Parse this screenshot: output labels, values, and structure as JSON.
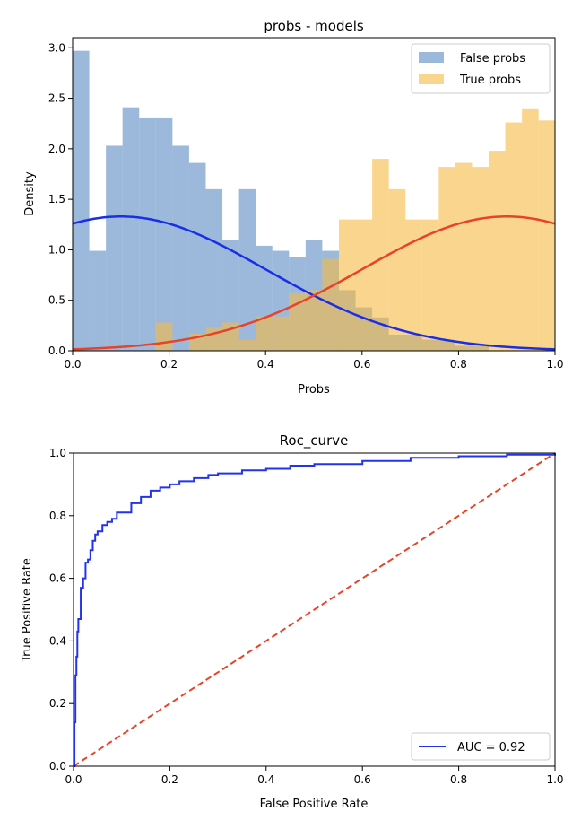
{
  "chart_data": [
    {
      "type": "histogram",
      "title": "probs - models",
      "xlabel": "Probs",
      "ylabel": "Density",
      "xlim": [
        0,
        1
      ],
      "ylim": [
        0,
        3.1
      ],
      "xticks": [
        "0.0",
        "0.2",
        "0.4",
        "0.6",
        "0.8",
        "1.0"
      ],
      "yticks": [
        "0.0",
        "0.5",
        "1.0",
        "1.5",
        "2.0",
        "2.5",
        "3.0"
      ],
      "grid": false,
      "legend_position": "top-right",
      "bin_width": 0.0345,
      "series": [
        {
          "name": "False probs",
          "kind": "histogram",
          "color": "#4a7fbf",
          "opacity": 0.55,
          "values": [
            2.97,
            0.99,
            2.03,
            2.41,
            2.31,
            2.31,
            2.03,
            1.86,
            1.6,
            1.1,
            1.6,
            1.04,
            0.99,
            0.93,
            1.1,
            0.99,
            0.6,
            0.43,
            0.33,
            0.16,
            0.16,
            0.11,
            0.11,
            0.05,
            0.05,
            0.0,
            0.0,
            0.0,
            0.0
          ]
        },
        {
          "name": "True probs",
          "kind": "histogram",
          "color": "#f5b942",
          "opacity": 0.6,
          "values": [
            0.0,
            0.0,
            0.0,
            0.0,
            0.0,
            0.28,
            0.0,
            0.17,
            0.23,
            0.28,
            0.11,
            0.34,
            0.34,
            0.57,
            0.6,
            0.91,
            1.3,
            1.3,
            1.9,
            1.6,
            1.3,
            1.3,
            1.82,
            1.86,
            1.82,
            1.98,
            2.26,
            2.4,
            2.28
          ]
        },
        {
          "name": "False fit",
          "kind": "curve",
          "color": "#1a2ee8",
          "mean": 0.1,
          "sd": 0.3,
          "peak": 1.33
        },
        {
          "name": "True fit",
          "kind": "curve",
          "color": "#e8432a",
          "mean": 0.9,
          "sd": 0.3,
          "peak": 1.33
        }
      ]
    },
    {
      "type": "line",
      "title": "Roc_curve",
      "xlabel": "False Positive Rate",
      "ylabel": "True Positive Rate",
      "xlim": [
        0,
        1
      ],
      "ylim": [
        0,
        1
      ],
      "xticks": [
        "0.0",
        "0.2",
        "0.4",
        "0.6",
        "0.8",
        "1.0"
      ],
      "yticks": [
        "0.0",
        "0.2",
        "0.4",
        "0.6",
        "0.8",
        "1.0"
      ],
      "grid": false,
      "legend_position": "bottom-right",
      "series": [
        {
          "name": "AUC = 0.92",
          "color": "#2233ee",
          "style": "solid",
          "x": [
            0.0,
            0.002,
            0.004,
            0.006,
            0.008,
            0.01,
            0.015,
            0.02,
            0.025,
            0.03,
            0.035,
            0.04,
            0.045,
            0.05,
            0.06,
            0.07,
            0.08,
            0.09,
            0.1,
            0.12,
            0.14,
            0.16,
            0.18,
            0.2,
            0.22,
            0.25,
            0.28,
            0.3,
            0.35,
            0.4,
            0.45,
            0.5,
            0.6,
            0.7,
            0.8,
            0.9,
            1.0
          ],
          "y": [
            0.0,
            0.14,
            0.29,
            0.35,
            0.43,
            0.47,
            0.57,
            0.6,
            0.65,
            0.66,
            0.69,
            0.72,
            0.74,
            0.75,
            0.77,
            0.78,
            0.79,
            0.81,
            0.81,
            0.84,
            0.86,
            0.88,
            0.89,
            0.9,
            0.91,
            0.92,
            0.93,
            0.935,
            0.945,
            0.95,
            0.96,
            0.965,
            0.975,
            0.985,
            0.99,
            0.995,
            1.0
          ]
        },
        {
          "color": "#e8432a",
          "style": "dashed",
          "x": [
            0,
            1
          ],
          "y": [
            0,
            1
          ]
        }
      ]
    }
  ]
}
